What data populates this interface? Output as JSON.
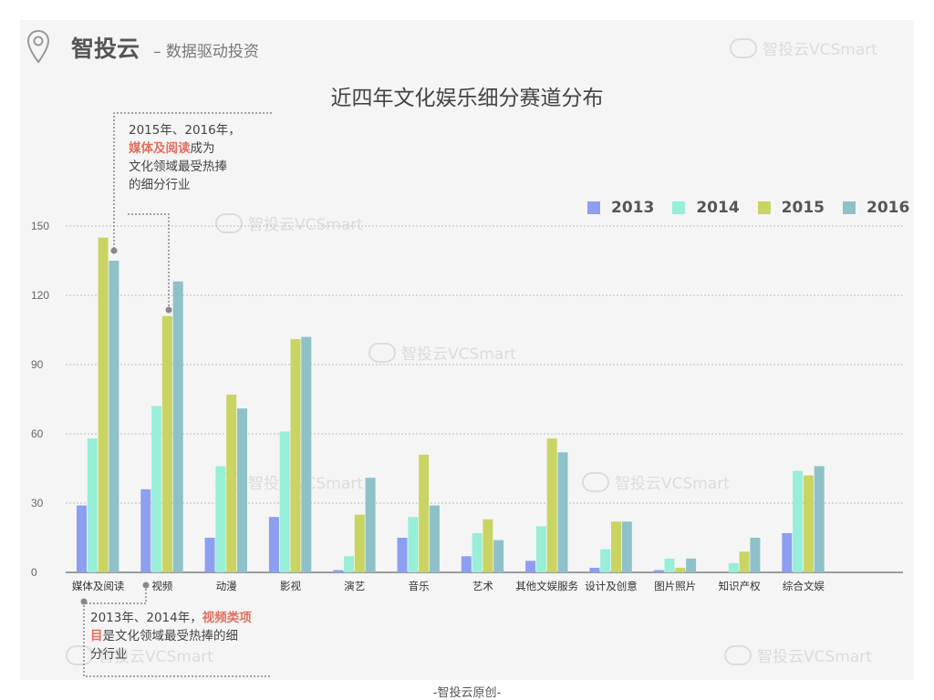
{
  "header": {
    "brand": "智投云",
    "tagline": "– 数据驱动投资",
    "pin_icon": "map-pin-icon"
  },
  "watermark": "智投云VCSmart",
  "title": "近四年文化娱乐细分赛道分布",
  "footer": "-智投云原创-",
  "annotations": {
    "top": {
      "line1": "2015年、2016年，",
      "highlight": "媒体及阅读",
      "rest1": "成为",
      "line3": "文化领域最受热捧",
      "line4": "的细分行业"
    },
    "bottom": {
      "prefix": "2013年、2014年，",
      "highlight_a": "视频类项",
      "highlight_b": "目",
      "rest1": "是文化领域最受热捧的细",
      "line3": "分行业"
    }
  },
  "colors": {
    "2013": "#8d9ff0",
    "2014": "#97eed9",
    "2015": "#c9d463",
    "2016": "#8fc1c9"
  },
  "chart_data": {
    "type": "bar",
    "title": "近四年文化娱乐细分赛道分布",
    "categories": [
      "媒体及阅读",
      "视频",
      "动漫",
      "影视",
      "演艺",
      "音乐",
      "艺术",
      "其他文娱服务",
      "设计及创意",
      "图片照片",
      "知识产权",
      "综合文娱"
    ],
    "series": [
      {
        "name": "2013",
        "values": [
          29,
          36,
          15,
          24,
          1,
          15,
          7,
          5,
          2,
          1,
          0,
          17
        ]
      },
      {
        "name": "2014",
        "values": [
          58,
          72,
          46,
          61,
          7,
          24,
          17,
          20,
          10,
          6,
          4,
          44
        ]
      },
      {
        "name": "2015",
        "values": [
          145,
          111,
          77,
          101,
          25,
          51,
          23,
          58,
          22,
          2,
          9,
          42
        ]
      },
      {
        "name": "2016",
        "values": [
          135,
          126,
          71,
          102,
          41,
          29,
          14,
          52,
          22,
          6,
          15,
          46
        ]
      }
    ],
    "yticks": [
      0,
      30,
      60,
      90,
      120,
      150
    ],
    "ylim": [
      0,
      150
    ],
    "xlabel": "",
    "ylabel": "",
    "grid": true,
    "legend_position": "top-right"
  }
}
